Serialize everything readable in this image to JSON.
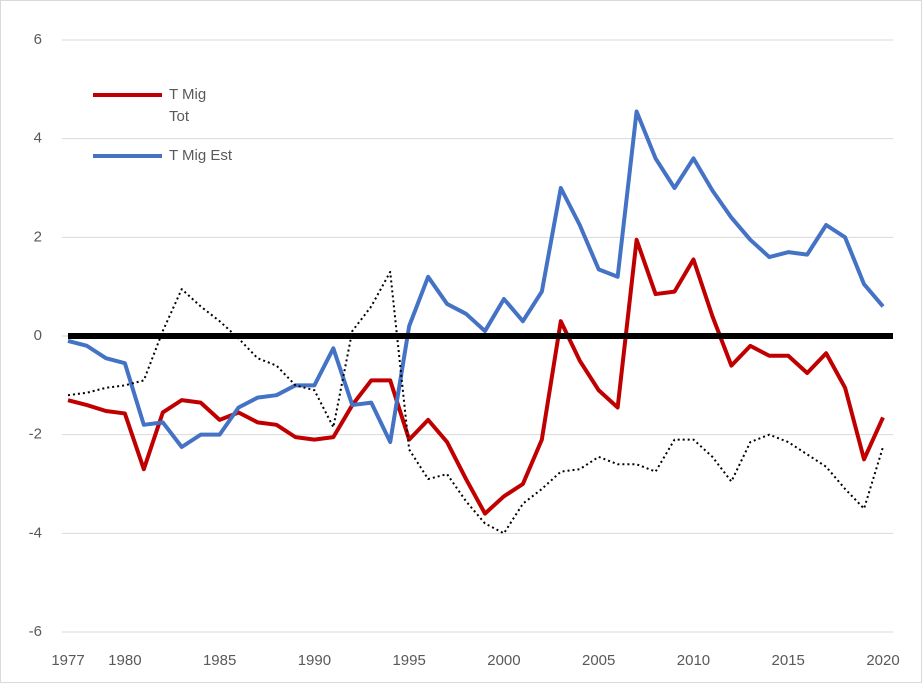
{
  "chart_data": {
    "type": "line",
    "x": [
      1977,
      1978,
      1979,
      1980,
      1981,
      1982,
      1983,
      1984,
      1985,
      1986,
      1987,
      1988,
      1989,
      1990,
      1991,
      1992,
      1993,
      1994,
      1995,
      1996,
      1997,
      1998,
      1999,
      2000,
      2001,
      2002,
      2003,
      2004,
      2005,
      2006,
      2007,
      2008,
      2009,
      2010,
      2011,
      2012,
      2013,
      2014,
      2015,
      2016,
      2017,
      2018,
      2019,
      2020
    ],
    "xlim": [
      1977,
      2020
    ],
    "xticks": [
      1977,
      1980,
      1985,
      1990,
      1995,
      2000,
      2005,
      2010,
      2015,
      2020
    ],
    "ylim": [
      -6,
      6
    ],
    "yticks": [
      -6,
      -4,
      -2,
      0,
      2,
      4,
      6
    ],
    "grid": true,
    "zero_line": true,
    "series": [
      {
        "name": "T Mig Tot",
        "color": "#c00000",
        "values": [
          -1.3,
          -1.4,
          -1.52,
          -1.57,
          -2.7,
          -1.55,
          -1.3,
          -1.35,
          -1.7,
          -1.55,
          -1.75,
          -1.8,
          -2.05,
          -2.1,
          -2.05,
          -1.4,
          -0.9,
          -0.9,
          -2.1,
          -1.7,
          -2.15,
          -2.9,
          -3.6,
          -3.25,
          -3.0,
          -2.1,
          0.3,
          -0.5,
          -1.1,
          -1.45,
          1.95,
          0.85,
          0.9,
          1.55,
          0.4,
          -0.6,
          -0.2,
          -0.4,
          -0.4,
          -0.75,
          -0.35,
          -1.05,
          -2.5,
          -1.65
        ]
      },
      {
        "name": "T Mig Est",
        "color": "#4472c4",
        "values": [
          -0.1,
          -0.2,
          -0.45,
          -0.55,
          -1.8,
          -1.75,
          -2.25,
          -2.0,
          -2.0,
          -1.45,
          -1.25,
          -1.2,
          -1.0,
          -1.0,
          -0.25,
          -1.4,
          -1.35,
          -2.15,
          0.2,
          1.2,
          0.65,
          0.45,
          0.1,
          0.75,
          0.3,
          0.9,
          3.0,
          2.25,
          1.35,
          1.2,
          4.55,
          3.6,
          3.0,
          3.6,
          2.95,
          2.4,
          1.95,
          1.6,
          1.7,
          1.65,
          2.25,
          2.0,
          1.05,
          0.6
        ]
      },
      {
        "color": "#000000",
        "line_style": "dotted",
        "values": [
          -1.2,
          -1.15,
          -1.05,
          -1.0,
          -0.9,
          0.1,
          0.95,
          0.6,
          0.3,
          -0.05,
          -0.45,
          -0.6,
          -1.0,
          -1.1,
          -1.85,
          0.1,
          0.6,
          1.3,
          -2.3,
          -2.9,
          -2.8,
          -3.35,
          -3.8,
          -4.0,
          -3.4,
          -3.1,
          -2.75,
          -2.7,
          -2.45,
          -2.6,
          -2.6,
          -2.75,
          -2.1,
          -2.1,
          -2.45,
          -2.95,
          -2.15,
          -2.0,
          -2.15,
          -2.4,
          -2.65,
          -3.1,
          -3.5,
          -2.25
        ]
      }
    ]
  }
}
